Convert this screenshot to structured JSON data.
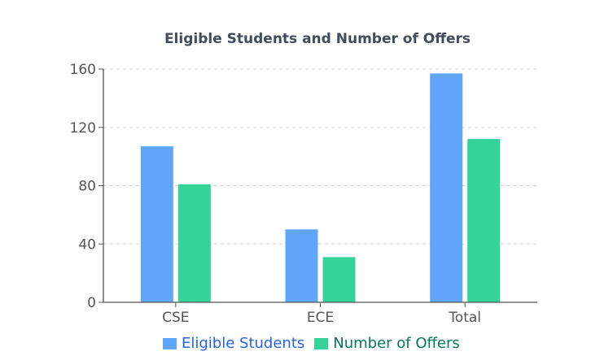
{
  "chart_data": {
    "type": "bar",
    "title": "Eligible Students and Number of Offers",
    "categories": [
      "CSE",
      "ECE",
      "Total"
    ],
    "series": [
      {
        "name": "Eligible Students",
        "values": [
          107,
          50,
          157
        ],
        "color": "#60a5fa",
        "legend_text_color": "#2563eb"
      },
      {
        "name": "Number of Offers",
        "values": [
          81,
          31,
          112
        ],
        "color": "#34d399",
        "legend_text_color": "#047857"
      }
    ],
    "xlabel": "",
    "ylabel": "",
    "ylim": [
      0,
      160
    ],
    "yticks": [
      0,
      40,
      80,
      120,
      160
    ],
    "grid": true,
    "grid_style": "dashed",
    "legend_position": "bottom"
  },
  "legend": {
    "items": [
      {
        "label": "Eligible Students"
      },
      {
        "label": "Number of Offers"
      }
    ]
  }
}
